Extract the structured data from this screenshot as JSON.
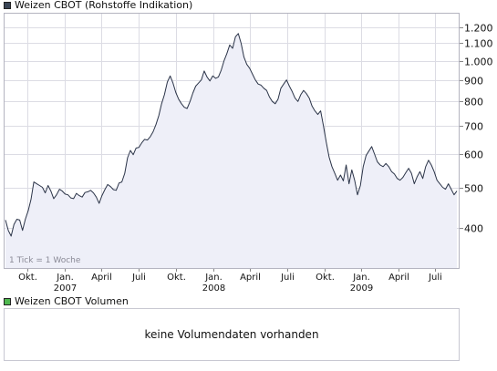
{
  "legend": {
    "price_label": "Weizen CBOT (Rohstoffe Indikation)",
    "price_color": "#3a4556",
    "volume_label": "Weizen CBOT Volumen",
    "volume_color": "#4fb84f"
  },
  "tick_note": "1 Tick = 1 Woche",
  "volume_panel": {
    "message": "keine Volumendaten vorhanden"
  },
  "chart_data": {
    "type": "area",
    "title": "Weizen CBOT (Rohstoffe Indikation)",
    "ylabel": "",
    "xlabel": "",
    "y_scale": "log",
    "ylim": [
      320,
      1300
    ],
    "y_ticks": [
      {
        "value": 1200,
        "label": "1.200"
      },
      {
        "value": 1100,
        "label": "1.100"
      },
      {
        "value": 1000,
        "label": "1.000"
      },
      {
        "value": 900,
        "label": "900"
      },
      {
        "value": 800,
        "label": "800"
      },
      {
        "value": 700,
        "label": "700"
      },
      {
        "value": 600,
        "label": "600"
      },
      {
        "value": 500,
        "label": "500"
      },
      {
        "value": 400,
        "label": "400"
      }
    ],
    "x_range": [
      "2006-08-07",
      "2009-08-24"
    ],
    "x_ticks": [
      {
        "date": "2006-10-01",
        "label": "Okt."
      },
      {
        "date": "2007-01-01",
        "label": "Jan.",
        "year": "2007"
      },
      {
        "date": "2007-04-01",
        "label": "April"
      },
      {
        "date": "2007-07-01",
        "label": "Juli"
      },
      {
        "date": "2007-10-01",
        "label": "Okt."
      },
      {
        "date": "2008-01-01",
        "label": "Jan.",
        "year": "2008"
      },
      {
        "date": "2008-04-01",
        "label": "April"
      },
      {
        "date": "2008-07-01",
        "label": "Juli"
      },
      {
        "date": "2008-10-01",
        "label": "Okt."
      },
      {
        "date": "2009-01-01",
        "label": "Jan.",
        "year": "2009"
      },
      {
        "date": "2009-04-01",
        "label": "April"
      },
      {
        "date": "2009-07-01",
        "label": "Juli"
      }
    ],
    "grid": true,
    "series": [
      {
        "line_color": "#2b3448",
        "fill_color": "#eeeff8",
        "points": [
          [
            "2006-08-07",
            418
          ],
          [
            "2006-08-14",
            395
          ],
          [
            "2006-08-21",
            383
          ],
          [
            "2006-08-28",
            408
          ],
          [
            "2006-09-04",
            420
          ],
          [
            "2006-09-11",
            418
          ],
          [
            "2006-09-18",
            395
          ],
          [
            "2006-09-25",
            420
          ],
          [
            "2006-10-02",
            440
          ],
          [
            "2006-10-09",
            468
          ],
          [
            "2006-10-16",
            515
          ],
          [
            "2006-10-23",
            510
          ],
          [
            "2006-10-30",
            505
          ],
          [
            "2006-11-06",
            500
          ],
          [
            "2006-11-13",
            485
          ],
          [
            "2006-11-20",
            505
          ],
          [
            "2006-11-27",
            490
          ],
          [
            "2006-12-04",
            470
          ],
          [
            "2006-12-11",
            480
          ],
          [
            "2006-12-18",
            495
          ],
          [
            "2006-12-25",
            490
          ],
          [
            "2007-01-01",
            482
          ],
          [
            "2007-01-08",
            480
          ],
          [
            "2007-01-15",
            472
          ],
          [
            "2007-01-22",
            470
          ],
          [
            "2007-01-29",
            484
          ],
          [
            "2007-02-05",
            478
          ],
          [
            "2007-02-12",
            474
          ],
          [
            "2007-02-19",
            486
          ],
          [
            "2007-02-26",
            488
          ],
          [
            "2007-03-05",
            492
          ],
          [
            "2007-03-12",
            485
          ],
          [
            "2007-03-19",
            474
          ],
          [
            "2007-03-26",
            458
          ],
          [
            "2007-04-02",
            478
          ],
          [
            "2007-04-09",
            494
          ],
          [
            "2007-04-16",
            508
          ],
          [
            "2007-04-23",
            502
          ],
          [
            "2007-04-30",
            494
          ],
          [
            "2007-05-07",
            492
          ],
          [
            "2007-05-14",
            512
          ],
          [
            "2007-05-21",
            515
          ],
          [
            "2007-05-28",
            540
          ],
          [
            "2007-06-04",
            588
          ],
          [
            "2007-06-11",
            612
          ],
          [
            "2007-06-18",
            598
          ],
          [
            "2007-06-25",
            620
          ],
          [
            "2007-07-02",
            622
          ],
          [
            "2007-07-09",
            638
          ],
          [
            "2007-07-16",
            650
          ],
          [
            "2007-07-23",
            648
          ],
          [
            "2007-07-30",
            660
          ],
          [
            "2007-08-06",
            678
          ],
          [
            "2007-08-13",
            705
          ],
          [
            "2007-08-20",
            740
          ],
          [
            "2007-08-27",
            790
          ],
          [
            "2007-09-03",
            830
          ],
          [
            "2007-09-10",
            890
          ],
          [
            "2007-09-17",
            920
          ],
          [
            "2007-09-24",
            885
          ],
          [
            "2007-10-01",
            840
          ],
          [
            "2007-10-08",
            810
          ],
          [
            "2007-10-15",
            790
          ],
          [
            "2007-10-22",
            775
          ],
          [
            "2007-10-29",
            770
          ],
          [
            "2007-11-05",
            800
          ],
          [
            "2007-11-12",
            838
          ],
          [
            "2007-11-19",
            870
          ],
          [
            "2007-11-26",
            885
          ],
          [
            "2007-12-03",
            900
          ],
          [
            "2007-12-10",
            945
          ],
          [
            "2007-12-17",
            915
          ],
          [
            "2007-12-24",
            895
          ],
          [
            "2007-12-31",
            920
          ],
          [
            "2008-01-07",
            908
          ],
          [
            "2008-01-14",
            915
          ],
          [
            "2008-01-21",
            950
          ],
          [
            "2008-01-28",
            1000
          ],
          [
            "2008-02-04",
            1040
          ],
          [
            "2008-02-11",
            1090
          ],
          [
            "2008-02-18",
            1070
          ],
          [
            "2008-02-25",
            1140
          ],
          [
            "2008-03-03",
            1160
          ],
          [
            "2008-03-10",
            1100
          ],
          [
            "2008-03-17",
            1020
          ],
          [
            "2008-03-24",
            980
          ],
          [
            "2008-03-31",
            960
          ],
          [
            "2008-04-07",
            930
          ],
          [
            "2008-04-14",
            900
          ],
          [
            "2008-04-21",
            880
          ],
          [
            "2008-04-28",
            875
          ],
          [
            "2008-05-05",
            860
          ],
          [
            "2008-05-12",
            850
          ],
          [
            "2008-05-19",
            820
          ],
          [
            "2008-05-26",
            800
          ],
          [
            "2008-06-02",
            790
          ],
          [
            "2008-06-09",
            810
          ],
          [
            "2008-06-16",
            860
          ],
          [
            "2008-06-23",
            880
          ],
          [
            "2008-06-30",
            900
          ],
          [
            "2008-07-07",
            870
          ],
          [
            "2008-07-14",
            845
          ],
          [
            "2008-07-21",
            815
          ],
          [
            "2008-07-28",
            800
          ],
          [
            "2008-08-04",
            830
          ],
          [
            "2008-08-11",
            850
          ],
          [
            "2008-08-18",
            835
          ],
          [
            "2008-08-25",
            815
          ],
          [
            "2008-09-01",
            780
          ],
          [
            "2008-09-08",
            760
          ],
          [
            "2008-09-15",
            745
          ],
          [
            "2008-09-22",
            760
          ],
          [
            "2008-09-29",
            700
          ],
          [
            "2008-10-06",
            640
          ],
          [
            "2008-10-13",
            590
          ],
          [
            "2008-10-20",
            560
          ],
          [
            "2008-10-27",
            540
          ],
          [
            "2008-11-03",
            520
          ],
          [
            "2008-11-10",
            535
          ],
          [
            "2008-11-17",
            518
          ],
          [
            "2008-11-24",
            565
          ],
          [
            "2008-12-01",
            510
          ],
          [
            "2008-12-08",
            550
          ],
          [
            "2008-12-15",
            520
          ],
          [
            "2008-12-22",
            480
          ],
          [
            "2008-12-29",
            505
          ],
          [
            "2009-01-05",
            560
          ],
          [
            "2009-01-12",
            595
          ],
          [
            "2009-01-19",
            610
          ],
          [
            "2009-01-26",
            625
          ],
          [
            "2009-02-02",
            600
          ],
          [
            "2009-02-09",
            575
          ],
          [
            "2009-02-16",
            565
          ],
          [
            "2009-02-23",
            560
          ],
          [
            "2009-03-02",
            570
          ],
          [
            "2009-03-09",
            560
          ],
          [
            "2009-03-16",
            545
          ],
          [
            "2009-03-23",
            538
          ],
          [
            "2009-03-30",
            525
          ],
          [
            "2009-04-06",
            520
          ],
          [
            "2009-04-13",
            528
          ],
          [
            "2009-04-20",
            542
          ],
          [
            "2009-04-27",
            555
          ],
          [
            "2009-05-04",
            540
          ],
          [
            "2009-05-11",
            510
          ],
          [
            "2009-05-18",
            530
          ],
          [
            "2009-05-25",
            545
          ],
          [
            "2009-06-01",
            525
          ],
          [
            "2009-06-08",
            560
          ],
          [
            "2009-06-15",
            580
          ],
          [
            "2009-06-22",
            565
          ],
          [
            "2009-06-29",
            545
          ],
          [
            "2009-07-06",
            520
          ],
          [
            "2009-07-13",
            510
          ],
          [
            "2009-07-20",
            500
          ],
          [
            "2009-07-27",
            495
          ],
          [
            "2009-08-03",
            510
          ],
          [
            "2009-08-10",
            495
          ],
          [
            "2009-08-17",
            480
          ],
          [
            "2009-08-24",
            490
          ]
        ]
      }
    ]
  }
}
